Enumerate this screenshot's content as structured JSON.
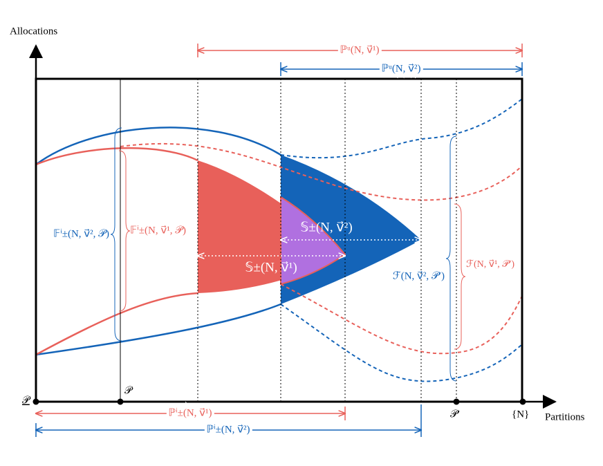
{
  "axes": {
    "y_label": "Allocations",
    "x_label": "Partitions",
    "ticks": [
      "𝒫",
      "𝒫",
      "𝒫′",
      "{N}"
    ]
  },
  "ranges": {
    "pu1": "ℙᵘ(N, v⃗¹)",
    "pu2": "ℙᵘ(N, v⃗²)",
    "pi1": "ℙⁱ±(N, v⃗¹)",
    "pi2": "ℙⁱ±(N, v⃗²)"
  },
  "regions": {
    "s2": "𝕊±(N, v⃗²)",
    "s1": "𝕊±(N, v⃗¹)"
  },
  "braces": {
    "fi2": "𝔽ⁱ±(N, v⃗², 𝒫)",
    "fi1": "𝔽ⁱ±(N, v⃗¹, 𝒫)",
    "f2": "ℱ(N, v⃗², 𝒫′)",
    "f1": "ℱ(N, v⃗¹, 𝒫′)"
  }
}
